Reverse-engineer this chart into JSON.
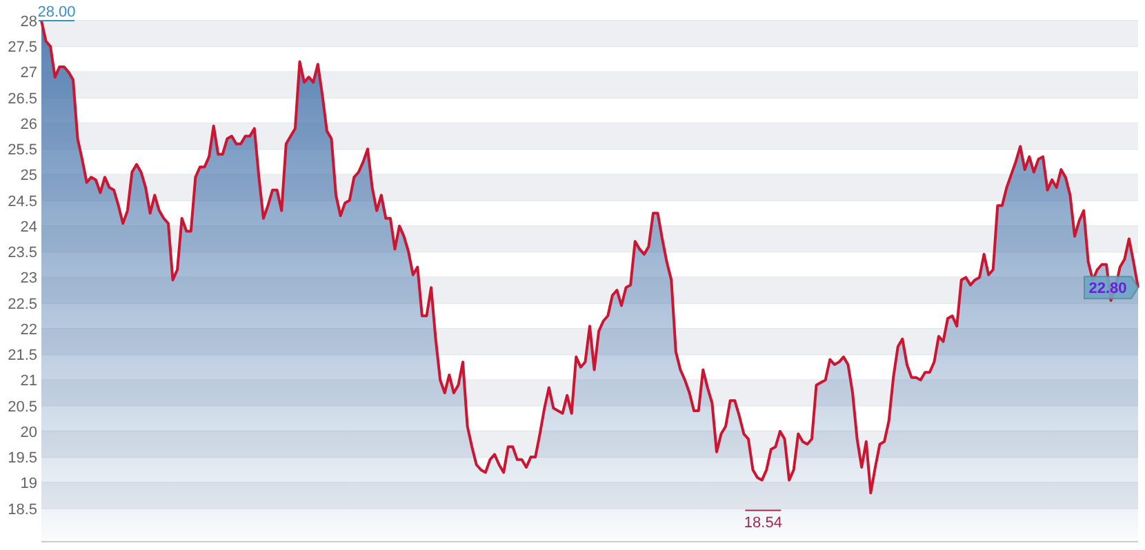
{
  "chart_data": {
    "type": "area",
    "categories": [
      null,
      null,
      null,
      null,
      null,
      null,
      null,
      null,
      null,
      null,
      null,
      null,
      null,
      null,
      null,
      null,
      null,
      null,
      null,
      null,
      null,
      null,
      null,
      null,
      null,
      null,
      null,
      null,
      null,
      null,
      null,
      null,
      null,
      null,
      null,
      null,
      null,
      null,
      null,
      null,
      null,
      null,
      null,
      null,
      null,
      null,
      null,
      null,
      null,
      null,
      null,
      null,
      null,
      null,
      null,
      null,
      null,
      null,
      null,
      null,
      null,
      null,
      null,
      null,
      null,
      null,
      null,
      null,
      null,
      null,
      null,
      null,
      null,
      null,
      null,
      null,
      null,
      null,
      null,
      null,
      null,
      null,
      null,
      null,
      null,
      null,
      null,
      null,
      null,
      null,
      null,
      null,
      null,
      null,
      null,
      null,
      null,
      null,
      null,
      null,
      null,
      null,
      null,
      null,
      null,
      null,
      null,
      null,
      null,
      null,
      null,
      null,
      null,
      null,
      null,
      null,
      null,
      null,
      null,
      null,
      null,
      null,
      null,
      null,
      null,
      null,
      null,
      null,
      null,
      null,
      null,
      null,
      null,
      null,
      null,
      null,
      null,
      null,
      null,
      null,
      null,
      null,
      null,
      null,
      null,
      null,
      null,
      null,
      null,
      null,
      null,
      null,
      null,
      null,
      null,
      null,
      null,
      null,
      null,
      null,
      null,
      null,
      null,
      null,
      null,
      null,
      null,
      null,
      null,
      null,
      null,
      null,
      null,
      null,
      null,
      null,
      null,
      null,
      null,
      null,
      null,
      null,
      null,
      null,
      null,
      null,
      null,
      null,
      null,
      null,
      null,
      null,
      null,
      null,
      null,
      null,
      null,
      null,
      null,
      null,
      null,
      null,
      null,
      null,
      null,
      null,
      null,
      null,
      null,
      null,
      null,
      null,
      null,
      null,
      null,
      null,
      null,
      null,
      null,
      null,
      null,
      null,
      null,
      null,
      null,
      null,
      null,
      null,
      null,
      null,
      null,
      null,
      null,
      null,
      null,
      null,
      null,
      null,
      null,
      null,
      null,
      null,
      null
    ],
    "series": [
      {
        "color": "#cc1530",
        "values": [
          28.0,
          27.6,
          27.5,
          26.9,
          27.1,
          27.1,
          27.0,
          26.85,
          25.7,
          25.3,
          24.85,
          24.95,
          24.9,
          24.65,
          24.95,
          24.75,
          24.7,
          24.4,
          24.05,
          24.3,
          25.05,
          25.2,
          25.05,
          24.75,
          24.25,
          24.6,
          24.3,
          24.15,
          24.05,
          22.95,
          23.15,
          24.15,
          23.9,
          23.9,
          24.95,
          25.15,
          25.15,
          25.35,
          25.95,
          25.4,
          25.4,
          25.7,
          25.75,
          25.6,
          25.6,
          25.75,
          25.75,
          25.9,
          24.95,
          24.15,
          24.4,
          24.7,
          24.7,
          24.3,
          25.6,
          25.75,
          25.9,
          27.2,
          26.8,
          26.9,
          26.8,
          27.15,
          26.55,
          25.85,
          25.7,
          24.6,
          24.2,
          24.45,
          24.5,
          24.95,
          25.05,
          25.25,
          25.5,
          24.75,
          24.3,
          24.6,
          24.15,
          24.15,
          23.55,
          24.0,
          23.8,
          23.5,
          23.05,
          23.2,
          22.25,
          22.25,
          22.8,
          21.8,
          21.0,
          20.75,
          21.1,
          20.75,
          20.9,
          21.35,
          20.1,
          19.7,
          19.35,
          19.25,
          19.2,
          19.45,
          19.55,
          19.35,
          19.2,
          19.7,
          19.7,
          19.45,
          19.45,
          19.3,
          19.5,
          19.5,
          19.95,
          20.45,
          20.85,
          20.45,
          20.4,
          20.35,
          20.7,
          20.35,
          21.45,
          21.25,
          21.35,
          22.05,
          21.2,
          21.95,
          22.15,
          22.25,
          22.65,
          22.75,
          22.45,
          22.8,
          22.85,
          23.7,
          23.55,
          23.45,
          23.6,
          24.25,
          24.25,
          23.75,
          23.3,
          22.95,
          21.55,
          21.2,
          21.0,
          20.75,
          20.4,
          20.4,
          21.2,
          20.85,
          20.55,
          19.6,
          19.95,
          20.1,
          20.6,
          20.6,
          20.3,
          19.95,
          19.85,
          19.25,
          19.1,
          19.05,
          19.25,
          19.65,
          19.7,
          20.0,
          19.85,
          19.05,
          19.25,
          19.95,
          19.8,
          19.75,
          19.85,
          20.9,
          20.95,
          21.0,
          21.4,
          21.3,
          21.35,
          21.45,
          21.3,
          20.75,
          19.85,
          19.3,
          19.8,
          18.8,
          19.3,
          19.75,
          19.8,
          20.2,
          21.05,
          21.65,
          21.8,
          21.3,
          21.05,
          21.05,
          21.0,
          21.15,
          21.15,
          21.35,
          21.85,
          21.75,
          22.2,
          22.25,
          22.05,
          22.95,
          23.0,
          22.85,
          22.95,
          23.0,
          23.45,
          23.05,
          23.15,
          24.4,
          24.4,
          24.75,
          25.0,
          25.25,
          25.55,
          25.1,
          25.35,
          25.05,
          25.3,
          25.35,
          24.7,
          24.9,
          24.75,
          25.1,
          24.95,
          24.6,
          23.8,
          24.1,
          24.3,
          23.3,
          22.95,
          23.15,
          23.25,
          23.25,
          22.55,
          22.8,
          23.2,
          23.35,
          23.75,
          23.3,
          22.8
        ]
      }
    ],
    "ylim": [
      17.85,
      28
    ],
    "yticks": [
      18.5,
      19,
      19.5,
      20,
      20.5,
      21,
      21.5,
      22,
      22.5,
      23,
      23.5,
      24,
      24.5,
      25,
      25.5,
      26,
      26.5,
      27,
      27.5,
      28
    ],
    "grid": "y",
    "marker": "none",
    "line_style": "solid",
    "annotations": [
      "28.00",
      "18.54",
      "22.80"
    ]
  }
}
